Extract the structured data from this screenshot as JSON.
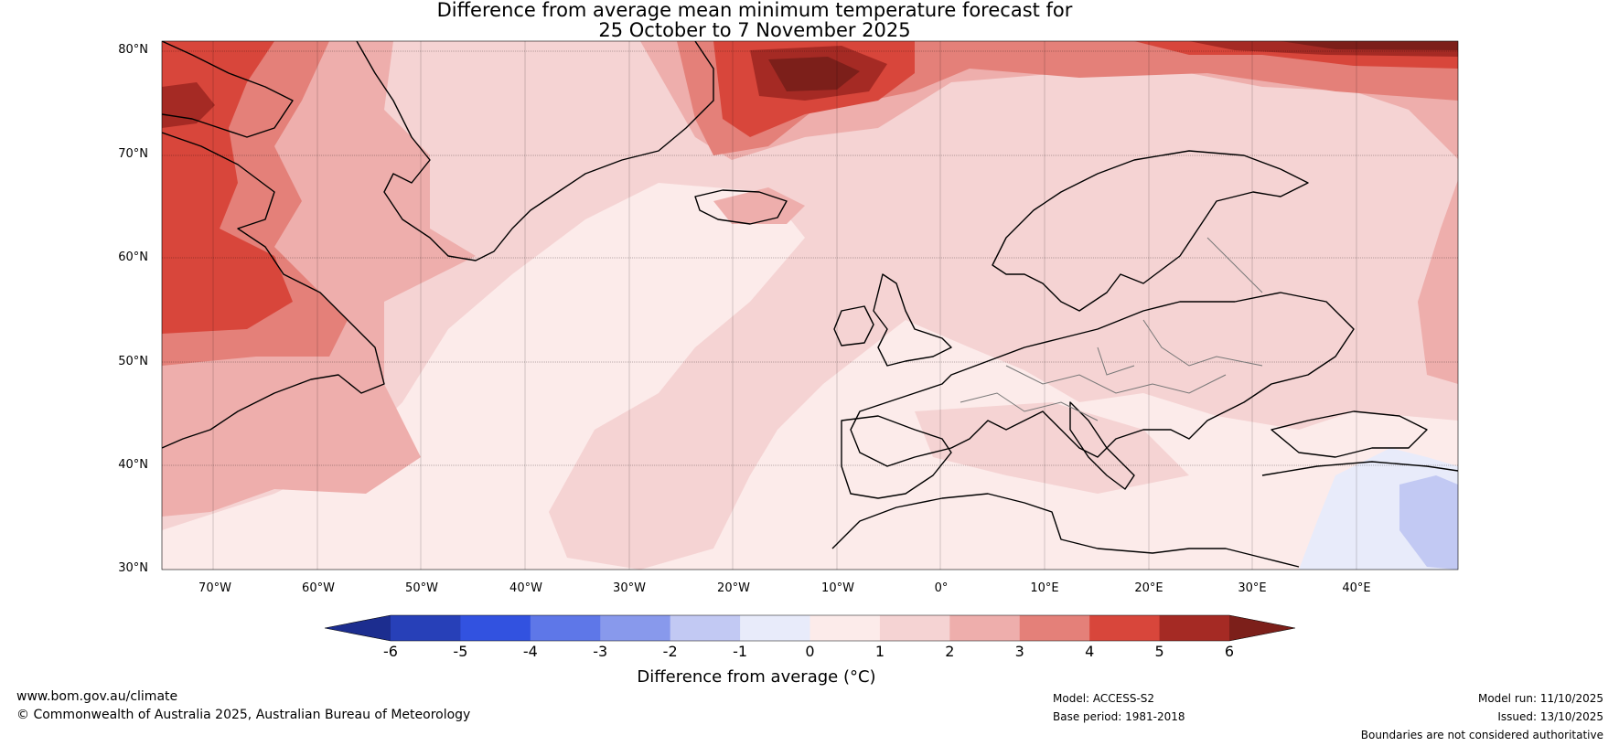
{
  "title_line1": "Difference from average mean minimum temperature forecast for",
  "title_line2": "25 October to 7 November 2025",
  "lat_labels": [
    "80°N",
    "70°N",
    "60°N",
    "50°N",
    "40°N",
    "30°N"
  ],
  "lon_labels": [
    "70°W",
    "60°W",
    "50°W",
    "40°W",
    "30°W",
    "20°W",
    "10°W",
    "0°",
    "10°E",
    "20°E",
    "30°E",
    "40°E"
  ],
  "map_extent": {
    "lon_min": -75,
    "lon_max": 50,
    "lat_min": 30,
    "lat_max": 81
  },
  "colorbar": {
    "ticks": [
      "-6",
      "-5",
      "-4",
      "-3",
      "-2",
      "-1",
      "0",
      "1",
      "2",
      "3",
      "4",
      "5",
      "6"
    ],
    "colors": [
      "#1c2d8f",
      "#2740b8",
      "#3252e0",
      "#5e77e8",
      "#8899ec",
      "#c2c9f3",
      "#e8ebfa",
      "#fcebea",
      "#f5d3d3",
      "#eeaeac",
      "#e48079",
      "#d8463b",
      "#a52a24",
      "#7c1f1a"
    ],
    "label": "Difference from average (°C)"
  },
  "footer": {
    "website": "www.bom.gov.au/climate",
    "copyright": "© Commonwealth of Australia 2025, Australian Bureau of Meteorology",
    "model": "Model: ACCESS-S2",
    "base_period": "Base period: 1981-2018",
    "model_run": "Model run: 11/10/2025",
    "issued": "Issued: 13/10/2025",
    "disclaimer": "Boundaries are not considered authoritative"
  }
}
